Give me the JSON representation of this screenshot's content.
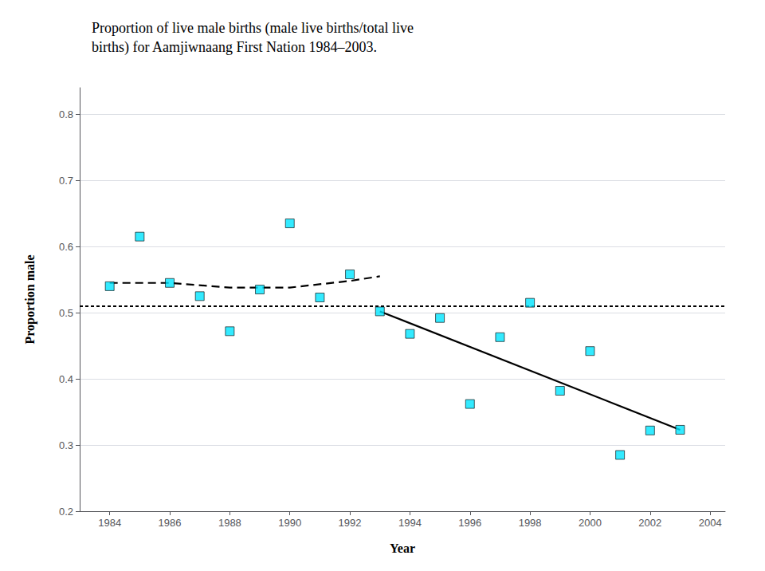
{
  "chart_data": {
    "type": "scatter",
    "title": "Proportion of live male births (male live births/total live\nbirths) for Aamjiwnaang First Nation 1984–2003.",
    "xlabel": "Year",
    "ylabel": "Proportion male",
    "xlim": [
      1983.0,
      2004.5
    ],
    "ylim": [
      0.2,
      0.84
    ],
    "xticks": [
      1984,
      1986,
      1988,
      1990,
      1992,
      1994,
      1996,
      1998,
      2000,
      2002,
      2004
    ],
    "yticks": [
      0.2,
      0.3,
      0.4,
      0.5,
      0.6,
      0.7,
      0.8
    ],
    "grid": true,
    "series": [
      {
        "type": "scatter",
        "color": "#00e5ff",
        "marker": "square",
        "x": [
          1984,
          1985,
          1986,
          1987,
          1988,
          1989,
          1990,
          1991,
          1992,
          1993,
          1994,
          1995,
          1996,
          1997,
          1998,
          1999,
          2000,
          2001,
          2002,
          2003
        ],
        "values": [
          0.54,
          0.615,
          0.545,
          0.525,
          0.472,
          0.535,
          0.635,
          0.523,
          0.558,
          0.502,
          0.468,
          0.492,
          0.362,
          0.463,
          0.515,
          0.382,
          0.442,
          0.285,
          0.322,
          0.323
        ]
      },
      {
        "type": "line",
        "color": "#000000",
        "line_style": "dashed",
        "x": [
          1984,
          1986,
          1988,
          1990,
          1992,
          1993
        ],
        "values": [
          0.545,
          0.545,
          0.538,
          0.538,
          0.548,
          0.555
        ]
      },
      {
        "type": "line",
        "color": "#000000",
        "line_style": "solid",
        "x": [
          1993,
          2003
        ],
        "values": [
          0.502,
          0.323
        ]
      },
      {
        "type": "hline",
        "color": "#000000",
        "line_style": "dotted",
        "values": [
          0.513
        ]
      }
    ]
  }
}
